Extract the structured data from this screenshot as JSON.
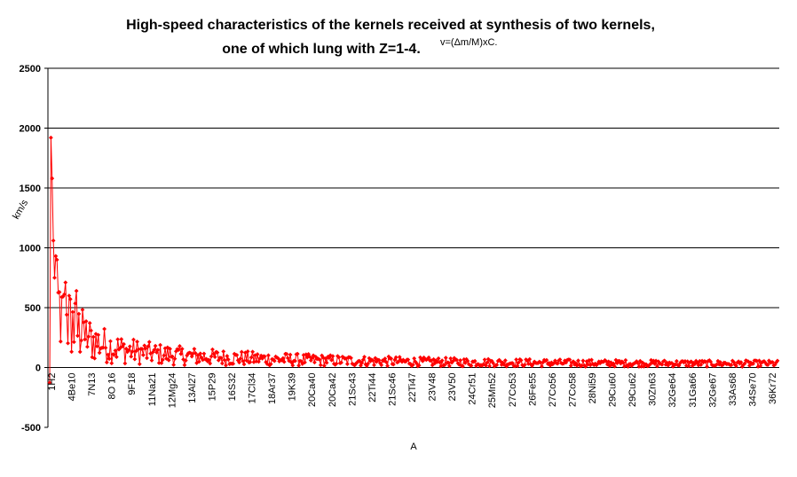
{
  "chart_data": {
    "type": "line",
    "title_line1": "High-speed characteristics of the kernels received at synthesis of two kernels,",
    "title_line2": "one of which lung with Z=1-4.",
    "formula": "v=(Δm/M)xC.",
    "xlabel": "A",
    "ylabel": "km/s",
    "ylim": [
      -500,
      2500
    ],
    "yticks": [
      -500,
      0,
      500,
      1000,
      1500,
      2000,
      2500
    ],
    "grid": true,
    "legend": "none",
    "color": "#ff0000",
    "x_tick_labels": [
      "1H2",
      "4Be10",
      "7N13",
      "8O 16",
      "9F18",
      "11Na21",
      "12Mg24",
      "13Al27",
      "15P29",
      "16S32",
      "17Cl34",
      "18Ar37",
      "19K39",
      "20Ca40",
      "20Ca42",
      "21Sc43",
      "22Ti44",
      "21Sc46",
      "22Ti47",
      "23V48",
      "23V50",
      "24Cr51",
      "25Mn52",
      "27Co53",
      "26Fe55",
      "27Co56",
      "27Co58",
      "28Ni59",
      "29Cu60",
      "29Cu62",
      "30Zn63",
      "32Ge64",
      "31Ga66",
      "32Ge67",
      "33As68",
      "34Se70",
      "36Kr72"
    ],
    "peaks": [
      {
        "x": 1,
        "y": 1920
      },
      {
        "x": 2,
        "y": 1580
      },
      {
        "x": 3,
        "y": 1060
      },
      {
        "x": 4,
        "y": 750
      },
      {
        "x": 6,
        "y": 900
      },
      {
        "x": 8,
        "y": 630
      },
      {
        "x": 13,
        "y": 710
      },
      {
        "x": 16,
        "y": 600
      },
      {
        "x": 22,
        "y": 640
      }
    ],
    "points": 600
  }
}
